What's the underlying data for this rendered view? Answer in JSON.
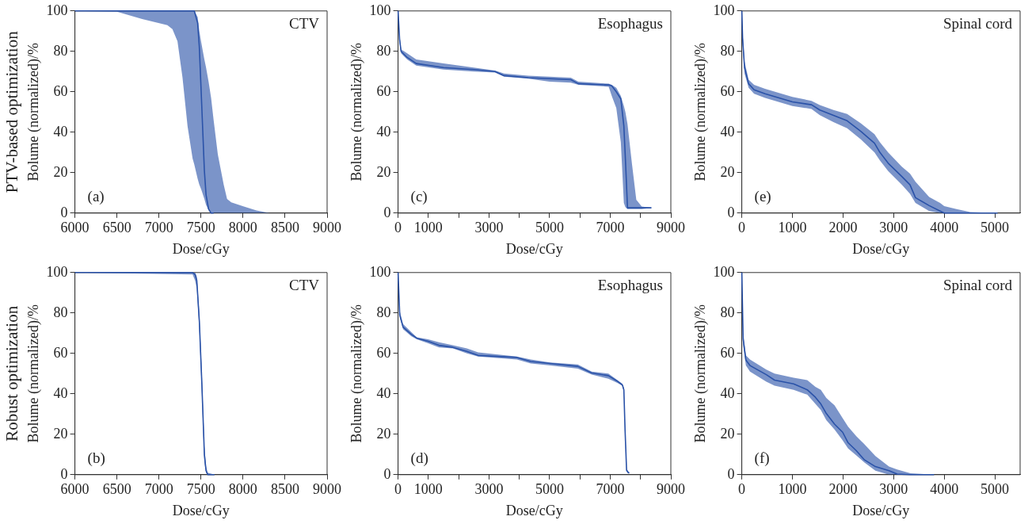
{
  "chart_data": [
    {
      "type": "line",
      "xlabel": "Dose/cGy",
      "ylabel": "Bolume (normalized)/%",
      "annotations": [
        "CTV",
        "(a)",
        "PTV-based optimization"
      ],
      "xlim": [
        6000,
        9000
      ],
      "xticks": [
        6000,
        6500,
        7000,
        7500,
        8000,
        8500,
        9000
      ],
      "ylim": [
        0,
        100
      ],
      "yticks": [
        0,
        20,
        40,
        60,
        80,
        100
      ],
      "x": [
        6000,
        6500,
        6800,
        7100,
        7160,
        7220,
        7280,
        7340,
        7400,
        7420,
        7460,
        7480,
        7500,
        7540,
        7560,
        7590,
        7620,
        7650,
        7700,
        7770,
        7810,
        7860,
        8010,
        8160,
        8320,
        8350
      ],
      "series": [
        {
          "color": "#2a52a8",
          "values": [
            100,
            100,
            100,
            100,
            100,
            100,
            100,
            100,
            100,
            100,
            94,
            82,
            62,
            21,
            9,
            2,
            0,
            0,
            null,
            null,
            null,
            null,
            null,
            null,
            null,
            null
          ],
          "lower": [
            100,
            99.6,
            96,
            93,
            91,
            85,
            67,
            43,
            27,
            24,
            17,
            14,
            12,
            7,
            4,
            1.5,
            0,
            0,
            0,
            0,
            0,
            0,
            0,
            0,
            0,
            0
          ],
          "upper": [
            100,
            100,
            100,
            100,
            100,
            100,
            100,
            100,
            100,
            100,
            97,
            90,
            85,
            76,
            72,
            65,
            57,
            46,
            29,
            14,
            7,
            5.3,
            3.3,
            1.3,
            0,
            0
          ]
        }
      ]
    },
    {
      "type": "line",
      "xlabel": "Dose/cGy",
      "ylabel": "Bolume (normalized)/%",
      "annotations": [
        "Esophagus",
        "(c)"
      ],
      "xlim": [
        0,
        9000
      ],
      "xticks": [
        0,
        1000,
        {
          "value": 2000,
          "label": null
        },
        3000,
        {
          "value": 4000,
          "label": null
        },
        5000,
        {
          "value": 6000,
          "label": null
        },
        7000,
        {
          "value": 8000,
          "label": null
        },
        9000
      ],
      "ylim": [
        0,
        100
      ],
      "yticks": [
        0,
        20,
        40,
        60,
        80,
        100
      ],
      "x": [
        0,
        50,
        100,
        300,
        600,
        1500,
        2500,
        3200,
        3500,
        4300,
        5000,
        5700,
        5950,
        6950,
        7050,
        7200,
        7350,
        7450,
        7500,
        7570,
        7600,
        7720,
        7860,
        8040,
        8360
      ],
      "series": [
        {
          "color": "#2a52a8",
          "values": [
            100,
            86,
            80,
            77,
            74,
            72,
            71,
            70,
            68,
            67,
            66.5,
            66,
            64,
            63.4,
            63,
            60,
            56.5,
            43,
            27,
            2.6,
            2.6,
            2.6,
            2.6,
            2.6,
            2.6
          ],
          "lower": [
            100,
            84,
            79,
            76,
            73,
            71,
            70,
            69.5,
            67.5,
            66.5,
            65,
            64.5,
            63.5,
            62.5,
            58,
            52,
            35,
            5,
            3,
            2,
            2,
            2,
            2,
            2,
            2.6
          ],
          "upper": [
            100,
            88,
            81,
            79,
            76,
            74,
            72,
            70.5,
            69,
            68,
            67.5,
            67,
            65,
            64,
            63.5,
            62,
            58,
            53,
            50,
            44,
            40,
            24,
            6.6,
            3.3,
            2.6
          ]
        }
      ]
    },
    {
      "type": "line",
      "xlabel": "Dose/cGy",
      "ylabel": "Bolume (normalized)/%",
      "annotations": [
        "Spinal cord",
        "(e)"
      ],
      "xlim": [
        0,
        5500
      ],
      "xticks": [
        0,
        1000,
        2000,
        3000,
        4000,
        5000
      ],
      "ylim": [
        0,
        100
      ],
      "yticks": [
        0,
        20,
        40,
        60,
        80,
        100
      ],
      "x": [
        0,
        16,
        54,
        135,
        243,
        459,
        1000,
        1378,
        1541,
        1811,
        2081,
        2351,
        2622,
        2730,
        2892,
        3162,
        3324,
        3432,
        3703,
        3919,
        4000,
        4243,
        4514,
        5054
      ],
      "series": [
        {
          "color": "#2a52a8",
          "values": [
            100,
            86.5,
            72,
            64,
            61,
            59,
            55,
            53.6,
            51,
            48.4,
            45.7,
            40.5,
            34.6,
            30,
            24.7,
            18.1,
            14,
            7.6,
            3.7,
            1,
            0,
            0,
            0,
            0
          ],
          "lower": [
            100,
            84,
            69,
            62,
            59,
            57,
            53,
            51.5,
            48.5,
            45,
            42,
            36.5,
            30,
            26,
            20.8,
            14,
            9.5,
            5,
            1,
            0,
            0,
            0,
            0,
            0
          ],
          "upper": [
            100,
            89,
            75,
            66,
            63.5,
            61.5,
            57.5,
            55.5,
            53.5,
            51,
            49,
            44.4,
            39,
            35,
            30,
            23,
            19.5,
            15.5,
            8,
            5,
            3.5,
            2,
            0.5,
            0
          ]
        }
      ]
    },
    {
      "type": "line",
      "xlabel": "Dose/cGy",
      "ylabel": "Bolume (normalized)/%",
      "annotations": [
        "CTV",
        "(b)",
        "Robust optimization"
      ],
      "xlim": [
        6000,
        9000
      ],
      "xticks": [
        6000,
        6500,
        7000,
        7500,
        8000,
        8500,
        9000
      ],
      "ylim": [
        0,
        100
      ],
      "yticks": [
        0,
        20,
        40,
        60,
        80,
        100
      ],
      "x": [
        6000,
        7400,
        7430,
        7450,
        7480,
        7510,
        7540,
        7560,
        7580,
        7620,
        7660
      ],
      "series": [
        {
          "color": "#2a52a8",
          "values": [
            100,
            100,
            99,
            96,
            76,
            45,
            10,
            2,
            0,
            0,
            0
          ],
          "lower": [
            100,
            99,
            96,
            92,
            72,
            40,
            6,
            1,
            0,
            0,
            0
          ],
          "upper": [
            100,
            100,
            100,
            98,
            80,
            50,
            14,
            4,
            1,
            0.5,
            0
          ]
        }
      ]
    },
    {
      "type": "line",
      "xlabel": "Dose/cGy",
      "ylabel": "Bolume (normalized)/%",
      "annotations": [
        "Esophagus",
        "(d)"
      ],
      "xlim": [
        0,
        9000
      ],
      "xticks": [
        0,
        1000,
        {
          "value": 2000,
          "label": null
        },
        3000,
        {
          "value": 4000,
          "label": null
        },
        5000,
        {
          "value": 6000,
          "label": null
        },
        7000,
        {
          "value": 8000,
          "label": null
        },
        9000
      ],
      "ylim": [
        0,
        100
      ],
      "yticks": [
        0,
        20,
        40,
        60,
        80,
        100
      ],
      "x": [
        0,
        55,
        165,
        440,
        620,
        990,
        1350,
        1810,
        2270,
        2640,
        3920,
        4380,
        5020,
        5930,
        6390,
        6940,
        7220,
        7400,
        7450,
        7490,
        7540,
        7600,
        7630
      ],
      "series": [
        {
          "color": "#2a52a8",
          "values": [
            100,
            79,
            73,
            69.4,
            67.5,
            66,
            64,
            63,
            61,
            59,
            58,
            56,
            55,
            53.6,
            50.3,
            49,
            46.4,
            44.4,
            42,
            22,
            2.2,
            1,
            1
          ],
          "lower": [
            100,
            78,
            72,
            68.5,
            67,
            65,
            63,
            62.5,
            60,
            58.5,
            57,
            55,
            54,
            52.5,
            49.5,
            47.5,
            45.5,
            44,
            41,
            20,
            1.5,
            0.5,
            0.5
          ],
          "upper": [
            100,
            81,
            74.5,
            70.5,
            68,
            67,
            65.5,
            64,
            62.5,
            60.5,
            58.5,
            57,
            55.5,
            54.5,
            51,
            50,
            47,
            45,
            43,
            24,
            3,
            1.5,
            1
          ]
        }
      ]
    },
    {
      "type": "line",
      "xlabel": "Dose/cGy",
      "ylabel": "Bolume (normalized)/%",
      "annotations": [
        "Spinal cord",
        "(f)"
      ],
      "xlim": [
        0,
        5500
      ],
      "xticks": [
        0,
        1000,
        2000,
        3000,
        4000,
        5000
      ],
      "ylim": [
        0,
        100
      ],
      "yticks": [
        0,
        20,
        40,
        60,
        80,
        100
      ],
      "x": [
        0,
        27,
        81,
        162,
        485,
        647,
        1024,
        1293,
        1455,
        1562,
        1670,
        1832,
        1993,
        2101,
        2263,
        2425,
        2640,
        2909,
        3070,
        3333,
        3800
      ],
      "series": [
        {
          "color": "#2a52a8",
          "values": [
            100,
            67,
            56.7,
            54,
            49.5,
            46.8,
            44.9,
            42,
            38.3,
            35,
            30.3,
            25,
            21,
            15.8,
            11.9,
            7.3,
            4,
            2,
            0.3,
            0,
            0
          ],
          "lower": [
            100,
            64,
            54,
            51,
            46,
            44,
            42,
            39.6,
            35,
            32,
            27,
            22.4,
            17,
            13,
            9.5,
            6,
            2,
            0,
            0,
            0,
            0
          ],
          "upper": [
            100,
            70,
            59,
            57,
            52,
            50,
            48,
            46.8,
            43.5,
            42,
            38,
            34.3,
            28,
            23.7,
            19,
            15,
            9.2,
            4,
            2.6,
            0.7,
            0
          ]
        }
      ]
    }
  ]
}
